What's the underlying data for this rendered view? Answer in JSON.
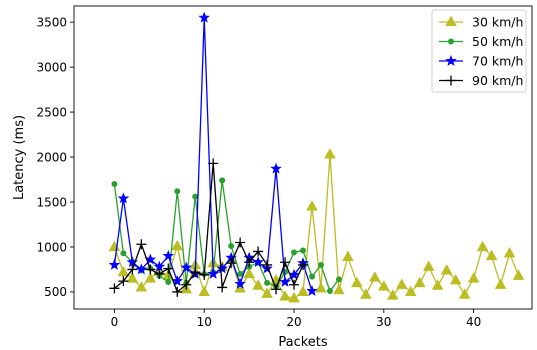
{
  "chart_data": {
    "type": "line",
    "xlabel": "Packets",
    "ylabel": "Latency (ms)",
    "xlim": [
      -4.5,
      46.5
    ],
    "ylim": [
      310,
      3680
    ],
    "xticks": [
      0,
      10,
      20,
      30,
      40
    ],
    "yticks": [
      500,
      1000,
      1500,
      2000,
      2500,
      3000,
      3500
    ],
    "grid": false,
    "legend_position": "top-right",
    "series": [
      {
        "name": "30 km/h",
        "color": "#bcbd22",
        "marker": "triangle",
        "x": [
          0,
          1,
          2,
          3,
          4,
          5,
          6,
          7,
          8,
          9,
          10,
          11,
          12,
          13,
          14,
          15,
          16,
          17,
          18,
          19,
          20,
          21,
          22,
          23,
          24,
          25,
          26,
          27,
          28,
          29,
          30,
          31,
          32,
          33,
          34,
          35,
          36,
          37,
          38,
          39,
          40,
          41,
          42,
          43,
          44,
          45
        ],
        "y": [
          1000,
          720,
          650,
          550,
          650,
          730,
          680,
          1010,
          530,
          800,
          500,
          820,
          780,
          860,
          540,
          700,
          570,
          480,
          630,
          450,
          430,
          500,
          1450,
          540,
          2030,
          520,
          890,
          600,
          470,
          660,
          560,
          460,
          580,
          500,
          600,
          780,
          570,
          740,
          630,
          470,
          650,
          1000,
          900,
          580,
          930,
          680
        ]
      },
      {
        "name": "50 km/h",
        "color": "#2ca02c",
        "marker": "dot",
        "x": [
          0,
          1,
          2,
          3,
          4,
          5,
          6,
          7,
          8,
          9,
          10,
          11,
          12,
          13,
          14,
          15,
          16,
          17,
          18,
          19,
          20,
          21,
          22,
          23,
          24,
          25
        ],
        "y": [
          1700,
          930,
          830,
          740,
          760,
          680,
          610,
          1620,
          600,
          1560,
          700,
          720,
          1740,
          1010,
          700,
          780,
          830,
          600,
          560,
          720,
          940,
          960,
          670,
          800,
          510,
          640
        ]
      },
      {
        "name": "70 km/h",
        "color": "#0000ff",
        "marker": "star",
        "x": [
          0,
          1,
          2,
          3,
          4,
          5,
          6,
          7,
          8,
          9,
          10,
          11,
          12,
          13,
          14,
          15,
          16,
          17,
          18,
          19,
          20,
          21,
          22
        ],
        "y": [
          800,
          1540,
          830,
          750,
          860,
          780,
          900,
          620,
          770,
          700,
          3550,
          700,
          760,
          880,
          590,
          880,
          830,
          760,
          1870,
          610,
          690,
          820,
          510
        ]
      },
      {
        "name": "90 km/h",
        "color": "#000000",
        "marker": "plus",
        "x": [
          0,
          1,
          2,
          3,
          4,
          5,
          6,
          7,
          8,
          9,
          10,
          11,
          12,
          13,
          14,
          15,
          16,
          17,
          18,
          19,
          20,
          21
        ],
        "y": [
          540,
          620,
          750,
          1030,
          750,
          700,
          760,
          500,
          580,
          720,
          690,
          1930,
          550,
          820,
          1050,
          830,
          950,
          800,
          530,
          830,
          580,
          800
        ]
      }
    ]
  }
}
